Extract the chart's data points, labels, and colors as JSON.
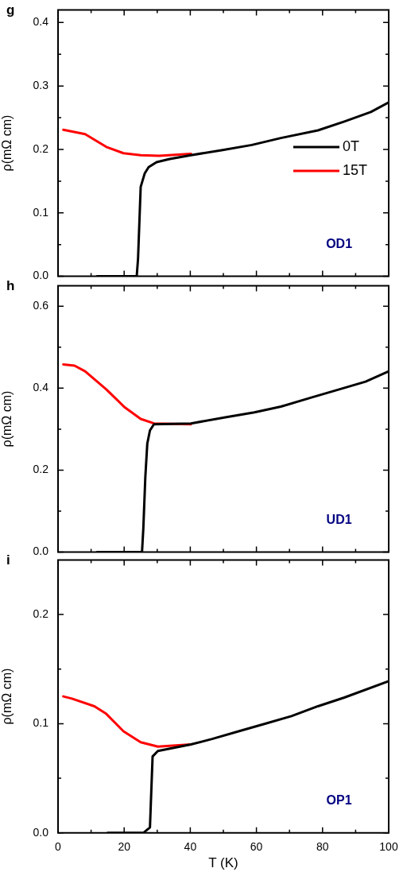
{
  "chart_data": [
    {
      "type": "line",
      "title": "g",
      "ylabel": "ρ(mΩ cm)",
      "xlim": [
        0,
        100
      ],
      "xticks": [
        0,
        {
          "value": 10,
          "label": null
        },
        20,
        {
          "value": 30,
          "label": null
        },
        40,
        {
          "value": 50,
          "label": null
        },
        60,
        {
          "value": 70,
          "label": null
        },
        80,
        {
          "value": 90,
          "label": null
        },
        100
      ],
      "ylim": [
        0,
        0.42
      ],
      "yticks": [
        {
          "value": 0,
          "label": "0.0"
        },
        {
          "value": 0.05,
          "label": null
        },
        0.1,
        {
          "value": 0.15,
          "label": null
        },
        0.2,
        {
          "value": 0.25,
          "label": null
        },
        0.3,
        {
          "value": 0.35,
          "label": null
        },
        0.4
      ],
      "tick_labels": "y",
      "legend": "right",
      "annotations": [
        "OD1"
      ],
      "series": [
        {
          "name": "0T",
          "color": "#000000",
          "x": [
            11.8,
            23.8,
            24.2,
            25,
            26.2,
            27.4,
            29.8,
            33.8,
            40.2,
            49.8,
            58.6,
            67.4,
            78.6,
            86.6,
            94.6,
            100
          ],
          "values": [
            0,
            0,
            0.028,
            0.141,
            0.162,
            0.172,
            0.18,
            0.185,
            0.191,
            0.199,
            0.207,
            0.218,
            0.23,
            0.244,
            0.259,
            0.274
          ]
        },
        {
          "name": "15T",
          "color": "#ff0000",
          "x": [
            1.6,
            8.2,
            14.6,
            19.8,
            25,
            30.6,
            40.2
          ],
          "values": [
            0.231,
            0.224,
            0.204,
            0.194,
            0.191,
            0.19,
            0.193
          ]
        }
      ]
    },
    {
      "type": "line",
      "title": "h",
      "ylabel": "ρ(mΩ cm)",
      "xlim": [
        0,
        100
      ],
      "xticks": [
        0,
        {
          "value": 10,
          "label": null
        },
        20,
        {
          "value": 30,
          "label": null
        },
        40,
        {
          "value": 50,
          "label": null
        },
        60,
        {
          "value": 70,
          "label": null
        },
        80,
        {
          "value": 90,
          "label": null
        },
        100
      ],
      "ylim": [
        0,
        0.65
      ],
      "yticks": [
        {
          "value": 0,
          "label": "0.0"
        },
        {
          "value": 0.1,
          "label": null
        },
        0.2,
        {
          "value": 0.3,
          "label": null
        },
        0.4,
        {
          "value": 0.5,
          "label": null
        },
        0.6
      ],
      "tick_labels": "y",
      "annotations": [
        "UD1"
      ],
      "series": [
        {
          "color": "#000000",
          "x": [
            11.8,
            25.4,
            25.8,
            26.4,
            27,
            27.8,
            29,
            40.2,
            50.6,
            59.4,
            67.4,
            77,
            84.2,
            93,
            100
          ],
          "values": [
            0,
            0,
            0.058,
            0.183,
            0.265,
            0.297,
            0.312,
            0.314,
            0.329,
            0.341,
            0.355,
            0.378,
            0.395,
            0.416,
            0.441
          ]
        },
        {
          "color": "#ff0000",
          "x": [
            1.6,
            5,
            8.2,
            14.6,
            20.2,
            25,
            29,
            40.2
          ],
          "values": [
            0.458,
            0.455,
            0.441,
            0.397,
            0.353,
            0.325,
            0.314,
            0.312
          ]
        }
      ]
    },
    {
      "type": "line",
      "title": "i",
      "xlabel": "T (K)",
      "ylabel": "ρ(mΩ cm)",
      "xlim": [
        0,
        100
      ],
      "xticks": [
        0,
        {
          "value": 10,
          "label": null
        },
        20,
        {
          "value": 30,
          "label": null
        },
        40,
        {
          "value": 50,
          "label": null
        },
        60,
        {
          "value": 70,
          "label": null
        },
        80,
        {
          "value": 90,
          "label": null
        },
        100
      ],
      "ylim": [
        0,
        0.25
      ],
      "yticks": [
        {
          "value": 0,
          "label": "0.0"
        },
        {
          "value": 0.05,
          "label": null
        },
        0.1,
        {
          "value": 0.15,
          "label": null
        },
        0.2
      ],
      "annotations": [
        "OP1"
      ],
      "series": [
        {
          "color": "#000000",
          "x": [
            15,
            25.8,
            27.8,
            28.6,
            30.2,
            40.2,
            46.6,
            54.6,
            62.6,
            70.6,
            78.6,
            86.6,
            100
          ],
          "values": [
            0,
            0,
            0.005,
            0.07,
            0.075,
            0.081,
            0.086,
            0.093,
            0.1,
            0.107,
            0.116,
            0.124,
            0.139
          ]
        },
        {
          "color": "#ff0000",
          "x": [
            1.6,
            4.2,
            11,
            14.6,
            19.8,
            25,
            30.2,
            40.2
          ],
          "values": [
            0.125,
            0.123,
            0.116,
            0.109,
            0.093,
            0.083,
            0.079,
            0.081
          ]
        }
      ]
    }
  ]
}
